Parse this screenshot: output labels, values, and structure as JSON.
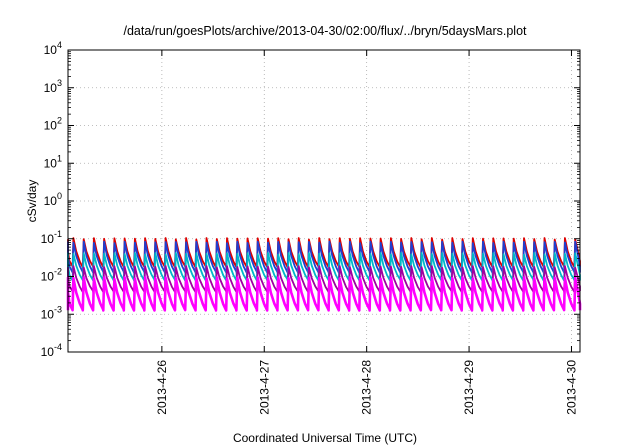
{
  "chart_data": {
    "type": "line",
    "title": "/data/run/goesPlots/archive/2013-04-30/02:00/flux/../bryn/5daysMars.plot",
    "xlabel": "Coordinated Universal Time (UTC)",
    "ylabel": "cSv/day",
    "yscale": "log",
    "ylim": [
      0.0001,
      10000
    ],
    "xlim": [
      "2013-04-25 02:00",
      "2013-04-30 02:00"
    ],
    "grid": true,
    "y_ticks": [
      {
        "base": "10",
        "exp": "-4"
      },
      {
        "base": "10",
        "exp": "-3"
      },
      {
        "base": "10",
        "exp": "-2"
      },
      {
        "base": "10",
        "exp": "-1"
      },
      {
        "base": "10",
        "exp": "0"
      },
      {
        "base": "10",
        "exp": "1"
      },
      {
        "base": "10",
        "exp": "2"
      },
      {
        "base": "10",
        "exp": "3"
      },
      {
        "base": "10",
        "exp": "4"
      }
    ],
    "x_ticks": [
      "2013-4-26",
      "2013-4-27",
      "2013-4-28",
      "2013-4-29",
      "2013-4-30"
    ],
    "series_pattern": {
      "period_hours": 2.4,
      "shape": "sawtooth, sharp rise then decay",
      "cycles": 50
    },
    "series": [
      {
        "color": "#dd0000",
        "peak": 0.1,
        "trough": 0.018
      },
      {
        "color": "#1f3fd0",
        "peak": 0.08,
        "trough": 0.013
      },
      {
        "color": "#00b8c8",
        "peak": 0.04,
        "trough": 0.008
      },
      {
        "color": "#a000a0",
        "peak": 0.018,
        "trough": 0.004
      },
      {
        "color": "#ff00ff",
        "peak": 0.009,
        "trough": 0.0013
      }
    ]
  }
}
